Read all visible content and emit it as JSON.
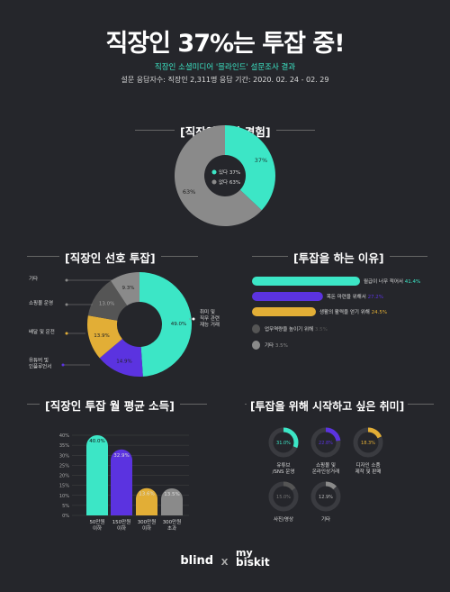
{
  "header": {
    "title": "직장인 37%는 투잡 중!",
    "subtitle": "직장인 소셜미디어 '블라인드' 설문조사 결과",
    "meta": "설문 응답자수: 직장인 2,311명  응답 기간: 2020. 02. 24 - 02. 29"
  },
  "chart_data": [
    {
      "type": "pie",
      "title": "[직장인 투잡 경험]",
      "categories": [
        "있다",
        "없다"
      ],
      "values": [
        37,
        63
      ],
      "labels": [
        "37%",
        "63%"
      ],
      "legend": [
        "있다 37%",
        "없다 63%"
      ],
      "legend_position": "center",
      "colors": [
        "#3ce6c6",
        "#8a8a8a"
      ]
    },
    {
      "type": "pie",
      "title": "[직장인 선호 투잡]",
      "categories": [
        "취미 및 직무 관련 재능 거래",
        "유튜버 및 인플루언서",
        "배달 및 운전",
        "쇼핑몰 운영",
        "기타"
      ],
      "category_labels": [
        [
          "취미 및",
          "직무 관련",
          "재능 거래"
        ],
        [
          "유튜버 및",
          "인플루언서"
        ],
        [
          "배달 및 운전"
        ],
        [
          "쇼핑몰 운영"
        ],
        [
          "기타"
        ]
      ],
      "values": [
        49.0,
        14.9,
        13.9,
        13.0,
        9.3
      ],
      "labels": [
        "49.0%",
        "14.9%",
        "13.9%",
        "13.0%",
        "9.3%"
      ],
      "colors": [
        "#3ce6c6",
        "#5b33e0",
        "#e2ae36",
        "#555555",
        "#8a8a8a"
      ]
    },
    {
      "type": "bar",
      "orientation": "horizontal",
      "title": "[투잡을 하는 이유]",
      "categories": [
        "월급이 너무 적어서",
        "목돈 마련을 위해서",
        "생활의 활력을 얻기 위해",
        "업무역량을 높이기 위해",
        "기타"
      ],
      "values": [
        41.4,
        27.2,
        24.5,
        3.5,
        3.5
      ],
      "labels": [
        "41.4%",
        "27.2%",
        "24.5%",
        "3.5%",
        "3.5%"
      ],
      "colors": [
        "#3ce6c6",
        "#5b33e0",
        "#e2ae36",
        "#555555",
        "#8a8a8a"
      ]
    },
    {
      "type": "bar",
      "title": "[직장인 투잡 월 평균 소득]",
      "categories": [
        "50만원 이하",
        "150만원 이하",
        "300만원 이하",
        "300만원 초과"
      ],
      "category_labels": [
        [
          "50만원",
          "이하"
        ],
        [
          "150만원",
          "이하"
        ],
        [
          "300만원",
          "이하"
        ],
        [
          "300만원",
          "초과"
        ]
      ],
      "values": [
        40.0,
        32.9,
        13.6,
        13.5
      ],
      "labels": [
        "40.0%",
        "32.9%",
        "13.6%",
        "13.5%"
      ],
      "ylim": [
        0,
        40
      ],
      "yticks": [
        "0%",
        "5%",
        "10%",
        "15%",
        "20%",
        "25%",
        "30%",
        "35%",
        "40%"
      ],
      "grid": true,
      "colors": [
        "#3ce6c6",
        "#5b33e0",
        "#e2ae36",
        "#8a8a8a"
      ]
    },
    {
      "type": "pie",
      "title": "[투잡을 위해 시작하고 싶은 취미]",
      "categories": [
        "유튜브 /SNS 운영",
        "쇼핑몰 및 온라인상거래",
        "디자인 소품 제작 및 판매",
        "사진/영상",
        "기타"
      ],
      "category_labels": [
        [
          "유튜브",
          "/SNS 운영"
        ],
        [
          "쇼핑몰 및",
          "온라인상거래"
        ],
        [
          "디자인 소품",
          "제작 및 판매"
        ],
        [
          "사진/영상"
        ],
        [
          "기타"
        ]
      ],
      "values": [
        31.0,
        22.8,
        18.3,
        15.0,
        12.9
      ],
      "labels": [
        "31.0%",
        "22.8%",
        "18.3%",
        "15.0%",
        "12.9%"
      ],
      "colors": [
        "#3ce6c6",
        "#5b33e0",
        "#e2ae36",
        "#555555",
        "#8a8a8a"
      ]
    }
  ],
  "footer": {
    "brand1": "blind",
    "x": "X",
    "brand2_top": "my",
    "brand2_bottom": "biskit"
  }
}
